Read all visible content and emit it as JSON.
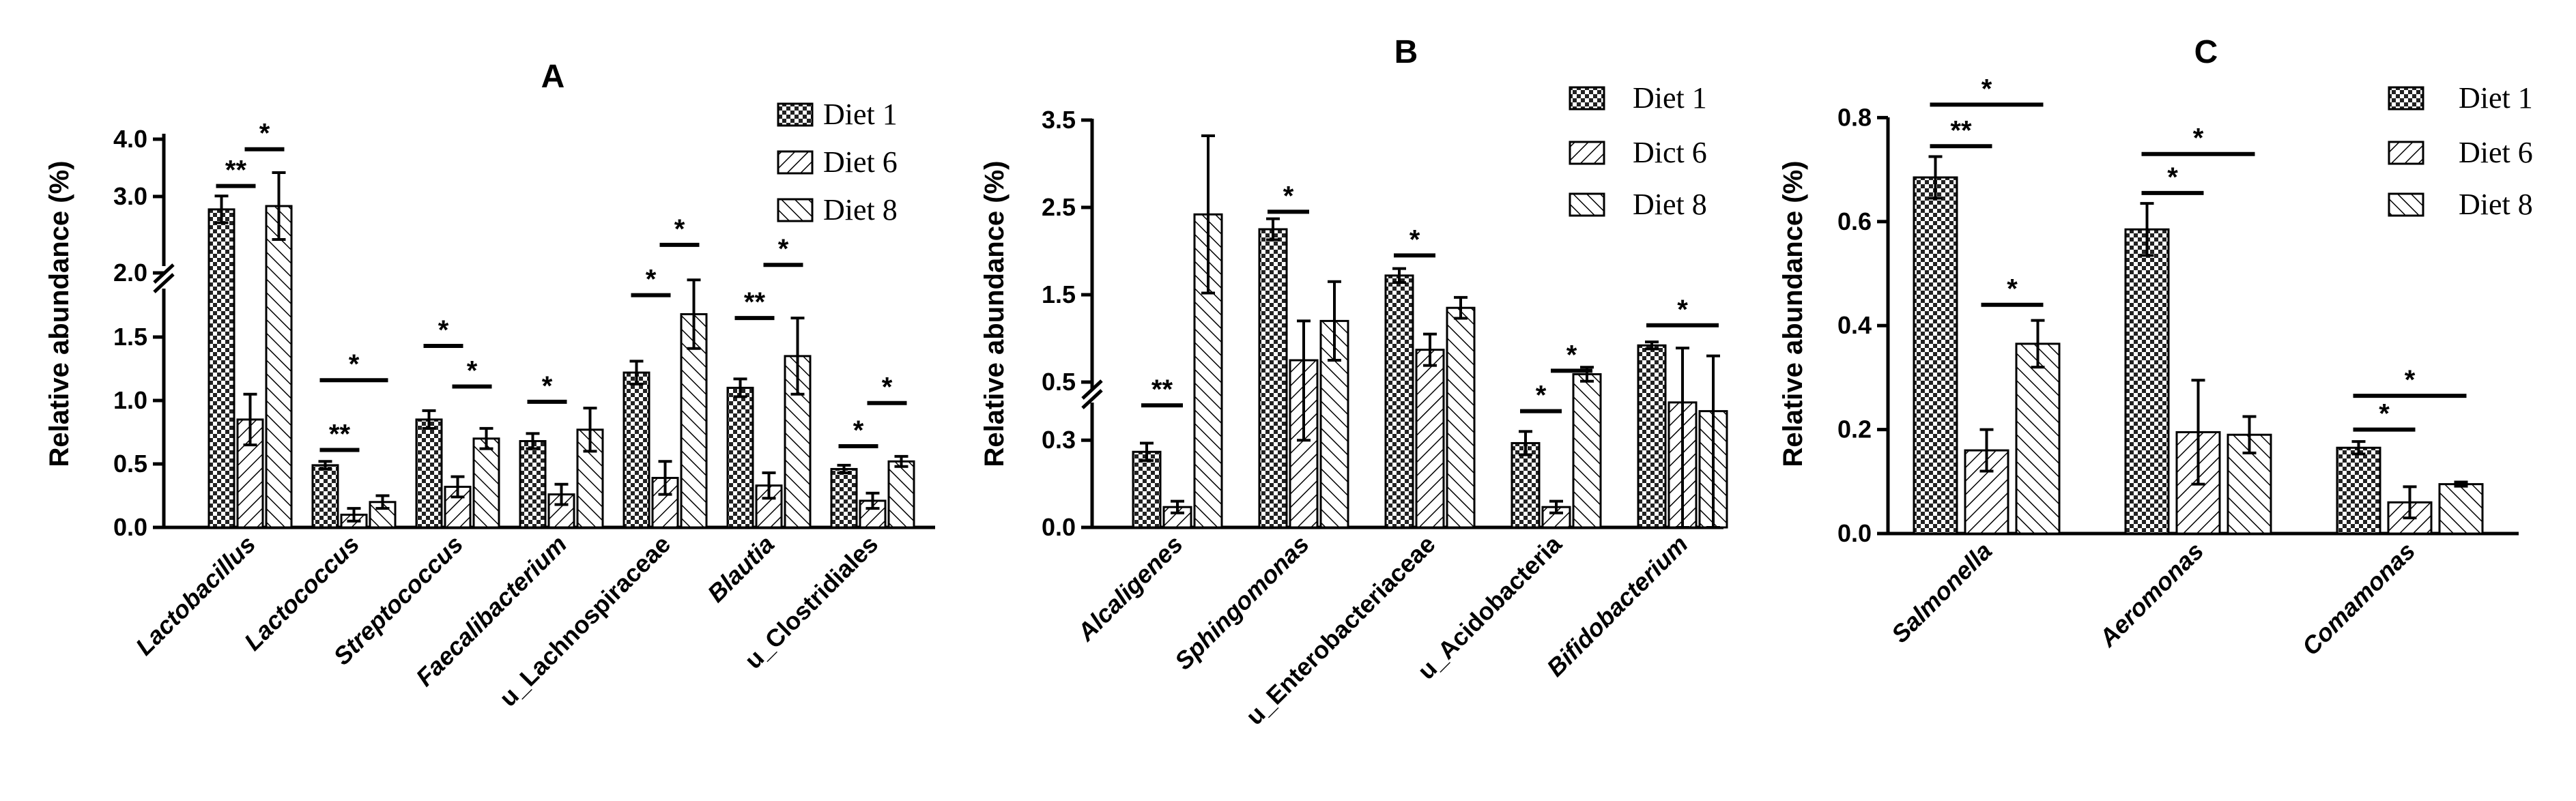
{
  "chart_data": [
    {
      "panel": "A",
      "type": "bar",
      "title": "A",
      "ylabel": "Relative abundance (%)",
      "xlabel": "",
      "legend": [
        "Diet 1",
        "Diet 6",
        "Diet 8"
      ],
      "legend_position": "top-right",
      "y_ticks": [
        "0.0",
        "0.5",
        "1.0",
        "1.5",
        "2.0",
        "3.0",
        "4.0"
      ],
      "axis_break": {
        "lower_max": 2.0,
        "upper_min": 2.0,
        "upper_max": 4.0
      },
      "categories": [
        "Lactobacillus",
        "Lactococcus",
        "Streptococcus",
        "Faecalibacterium",
        "u_Lachnospiraceae",
        "Blautia",
        "u_Clostridiales"
      ],
      "italic_categories": [
        true,
        true,
        true,
        true,
        false,
        true,
        false
      ],
      "series": [
        {
          "name": "Diet 1",
          "values": [
            2.95,
            0.49,
            0.85,
            0.68,
            1.22,
            1.1,
            0.46
          ],
          "errors": [
            0.2,
            0.03,
            0.07,
            0.06,
            0.09,
            0.07,
            0.03
          ]
        },
        {
          "name": "Diet 6",
          "values": [
            0.85,
            0.1,
            0.32,
            0.26,
            0.39,
            0.33,
            0.21
          ],
          "errors": [
            0.2,
            0.05,
            0.08,
            0.08,
            0.13,
            0.1,
            0.06
          ]
        },
        {
          "name": "Diet 8",
          "values": [
            3.0,
            0.2,
            0.7,
            0.77,
            1.68,
            1.35,
            0.52
          ],
          "errors": [
            0.5,
            0.05,
            0.08,
            0.17,
            0.27,
            0.3,
            0.04
          ]
        }
      ],
      "significance": [
        {
          "category": 0,
          "from": 0,
          "to": 1,
          "label": "**",
          "level": 3.3
        },
        {
          "category": 0,
          "from": 1,
          "to": 2,
          "label": "*",
          "level": 3.85
        },
        {
          "category": 1,
          "from": 0,
          "to": 1,
          "label": "**",
          "level": 0.61
        },
        {
          "category": 1,
          "from": 0,
          "to": 2,
          "label": "*",
          "level": 1.16
        },
        {
          "category": 2,
          "from": 0,
          "to": 1,
          "label": "*",
          "level": 1.43
        },
        {
          "category": 2,
          "from": 1,
          "to": 2,
          "label": "*",
          "level": 1.11
        },
        {
          "category": 3,
          "from": 0,
          "to": 1,
          "label": "*",
          "level": 0.99
        },
        {
          "category": 4,
          "from": 0,
          "to": 1,
          "label": "*",
          "level": 1.83
        },
        {
          "category": 4,
          "from": 1,
          "to": 2,
          "label": "*",
          "level": 2.42
        },
        {
          "category": 5,
          "from": 0,
          "to": 1,
          "label": "**",
          "level": 1.65
        },
        {
          "category": 5,
          "from": 1,
          "to": 2,
          "label": "*",
          "level": 2.12
        },
        {
          "category": 6,
          "from": 0,
          "to": 1,
          "label": "*",
          "level": 0.64
        },
        {
          "category": 6,
          "from": 1,
          "to": 2,
          "label": "*",
          "level": 0.98
        }
      ]
    },
    {
      "panel": "B",
      "type": "bar",
      "title": "B",
      "ylabel": "Relative abundance (%)",
      "xlabel": "",
      "legend": [
        "Diet 1",
        "Dict 6",
        "Diet 8"
      ],
      "legend_position": "top-right",
      "y_ticks": [
        "0.0",
        "0.3",
        "0.5",
        "1.5",
        "2.5",
        "3.5"
      ],
      "axis_break": {
        "lower_max": 0.5,
        "upper_min": 0.5,
        "upper_max": 3.5
      },
      "categories": [
        "Alcaligenes",
        "Sphingomonas",
        "u_Enterobacteriaceae",
        "u_Acidobacteria",
        "Bifidobacterium"
      ],
      "italic_categories": [
        true,
        true,
        false,
        false,
        true
      ],
      "series": [
        {
          "name": "Diet 1",
          "values": [
            0.26,
            2.25,
            1.72,
            0.29,
            0.92
          ],
          "errors": [
            0.03,
            0.12,
            0.08,
            0.04,
            0.04
          ]
        },
        {
          "name": "Dict 6",
          "values": [
            0.07,
            0.75,
            0.87,
            0.07,
            0.43
          ],
          "errors": [
            0.02,
            0.45,
            0.18,
            0.02,
            0.46
          ]
        },
        {
          "name": "Diet 8",
          "values": [
            2.42,
            1.2,
            1.35,
            0.59,
            0.4
          ],
          "errors": [
            0.9,
            0.45,
            0.12,
            0.08,
            0.4
          ]
        }
      ],
      "significance": [
        {
          "category": 0,
          "from": 0,
          "to": 1,
          "label": "**",
          "level": 0.42
        },
        {
          "category": 1,
          "from": 0,
          "to": 1,
          "label": "*",
          "level": 2.45
        },
        {
          "category": 2,
          "from": 0,
          "to": 1,
          "label": "*",
          "level": 1.95
        },
        {
          "category": 3,
          "from": 0,
          "to": 1,
          "label": "*",
          "level": 0.4
        },
        {
          "category": 3,
          "from": 1,
          "to": 2,
          "label": "*",
          "level": 0.63
        },
        {
          "category": 4,
          "from": 0,
          "to": 2,
          "label": "*",
          "level": 1.15
        }
      ]
    },
    {
      "panel": "C",
      "type": "bar",
      "title": "C",
      "ylabel": "Relative abundance (%)",
      "xlabel": "",
      "legend": [
        "Diet 1",
        "Diet 6",
        "Diet 8"
      ],
      "legend_position": "top-right",
      "y_ticks": [
        "0.0",
        "0.2",
        "0.4",
        "0.6",
        "0.8"
      ],
      "ylim": [
        0,
        0.8
      ],
      "categories": [
        "Salmonella",
        "Aeromonas",
        "Comamonas"
      ],
      "italic_categories": [
        true,
        true,
        true
      ],
      "series": [
        {
          "name": "Diet 1",
          "values": [
            0.685,
            0.585,
            0.165
          ],
          "errors": [
            0.04,
            0.05,
            0.012
          ]
        },
        {
          "name": "Diet 6",
          "values": [
            0.16,
            0.195,
            0.06
          ],
          "errors": [
            0.04,
            0.1,
            0.03
          ]
        },
        {
          "name": "Diet 8",
          "values": [
            0.365,
            0.19,
            0.095
          ],
          "errors": [
            0.045,
            0.035,
            0.004
          ]
        }
      ],
      "significance": [
        {
          "category": 0,
          "from": 0,
          "to": 2,
          "label": "*",
          "level": 0.825
        },
        {
          "category": 0,
          "from": 0,
          "to": 1,
          "label": "**",
          "level": 0.745
        },
        {
          "category": 0,
          "from": 1,
          "to": 2,
          "label": "*",
          "level": 0.44
        },
        {
          "category": 1,
          "from": 0,
          "to": 2,
          "label": "*",
          "level": 0.73
        },
        {
          "category": 1,
          "from": 0,
          "to": 1,
          "label": "*",
          "level": 0.655
        },
        {
          "category": 2,
          "from": 0,
          "to": 2,
          "label": "*",
          "level": 0.265
        },
        {
          "category": 2,
          "from": 0,
          "to": 1,
          "label": "*",
          "level": 0.2
        }
      ]
    }
  ]
}
